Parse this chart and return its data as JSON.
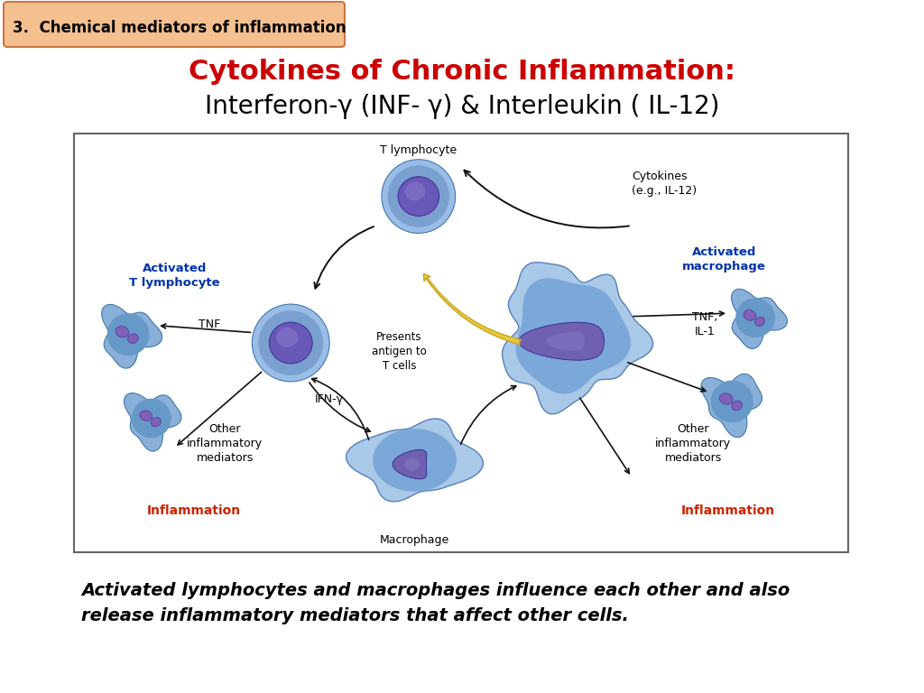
{
  "background_color": "#ffffff",
  "badge_text": "3.  Chemical mediators of inflammation",
  "title_line1": "Cytokines of Chronic Inflammation:",
  "title_line1_color": "#cc0000",
  "title_line2": "Interferon-γ (INF- γ) & Interleukin ( IL-12)",
  "title_line2_color": "#000000",
  "title_fontsize": 22,
  "subtitle_fontsize": 20,
  "badge_fontsize": 12,
  "caption_text": "Activated lymphocytes and macrophages influence each other and also\nrelease inflammatory mediators that affect other cells.",
  "caption_fontsize": 14,
  "blue_outer": "#7aafe0",
  "blue_mid": "#5a90c8",
  "blue_inner": "#4a7ab5",
  "purple_nuc": "#7060b0",
  "purple_dark": "#5040a0",
  "mac_outer": "#88aee0",
  "mac_mid": "#6890c8",
  "blue_label": "#0033aa",
  "red_label": "#cc2200",
  "arrow_color": "#111111",
  "yellow_arrow": "#e8c840"
}
